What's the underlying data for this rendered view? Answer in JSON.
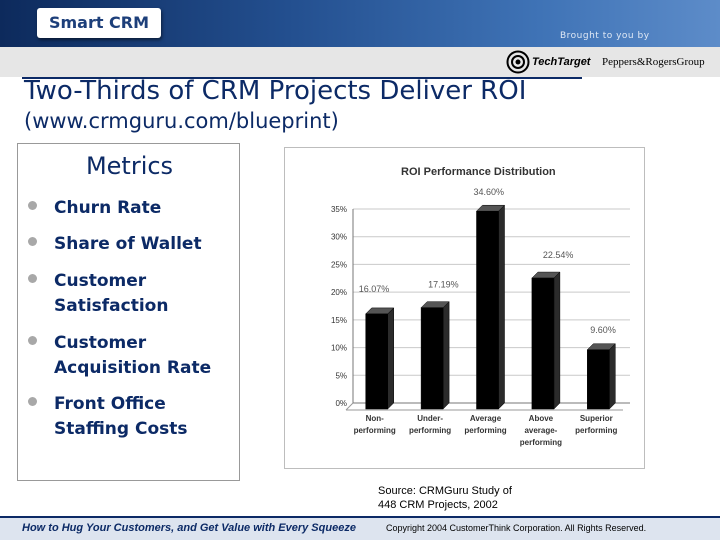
{
  "header": {
    "logo_text": "Smart CRM",
    "brought_by": "Brought to you by",
    "sponsors": [
      "TechTarget",
      "Peppers&RogersGroup"
    ]
  },
  "slide": {
    "title": "Two-Thirds of CRM Projects Deliver ROI",
    "subtitle": "(www.crmguru.com/blueprint)"
  },
  "metrics": {
    "title": "Metrics",
    "items": [
      "Churn Rate",
      "Share of Wallet",
      "Customer Satisfaction",
      "Customer Acquisition Rate",
      "Front Office Staffing Costs"
    ]
  },
  "chart_data": {
    "type": "bar",
    "title": "ROI Performance Distribution",
    "categories": [
      "Non-performing",
      "Under-performing",
      "Average performing",
      "Above average-performing",
      "Superior performing"
    ],
    "category_lines": [
      [
        "Non-",
        "performing"
      ],
      [
        "Under-",
        "performing"
      ],
      [
        "Average",
        "performing"
      ],
      [
        "Above",
        "average-",
        "performing"
      ],
      [
        "Superior",
        "performing"
      ]
    ],
    "values": [
      16.07,
      17.19,
      34.6,
      22.54,
      9.6
    ],
    "value_labels": [
      "16.07%",
      "17.19%",
      "34.60%",
      "22.54%",
      "9.60%"
    ],
    "y_ticks": [
      "0%",
      "5%",
      "10%",
      "15%",
      "20%",
      "25%",
      "30%",
      "35%"
    ],
    "ylim": [
      0,
      35
    ],
    "xlabel": "",
    "ylabel": "",
    "grid": true,
    "bar_color": "#000000"
  },
  "source": {
    "line1": "Source: CRMGuru Study of",
    "line2": "448 CRM Projects, 2002"
  },
  "footer": {
    "tagline": "How to Hug Your Customers, and Get Value with Every Squeeze",
    "copyright": "Copyright 2004 CustomerThink Corporation. All Rights Reserved."
  }
}
